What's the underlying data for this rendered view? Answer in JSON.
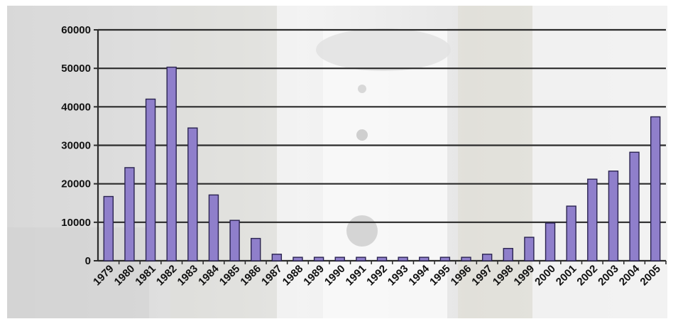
{
  "chart_data": {
    "type": "bar",
    "title": "",
    "xlabel": "",
    "ylabel": "",
    "ylim": [
      0,
      60000
    ],
    "yticks": [
      0,
      10000,
      20000,
      30000,
      40000,
      50000,
      60000
    ],
    "ytick_labels": [
      "0",
      "10000",
      "20000",
      "30000",
      "40000",
      "50000",
      "60000"
    ],
    "grid": true,
    "legend": "none",
    "categories": [
      "1979",
      "1980",
      "1981",
      "1982",
      "1983",
      "1984",
      "1985",
      "1986",
      "1987",
      "1988",
      "1989",
      "1990",
      "1991",
      "1992",
      "1993",
      "1994",
      "1995",
      "1996",
      "1997",
      "1998",
      "1999",
      "2000",
      "2001",
      "2002",
      "2003",
      "2004",
      "2005"
    ],
    "values": [
      16700,
      24200,
      42000,
      50300,
      34500,
      17100,
      10500,
      5800,
      1700,
      900,
      900,
      900,
      900,
      900,
      900,
      900,
      900,
      900,
      1700,
      3200,
      6100,
      9800,
      14200,
      21200,
      23300,
      28200,
      37400
    ],
    "colors": {
      "bar_fill": "#8f7fcb",
      "bar_stroke": "#2a2350",
      "gridline": "#2b2b2b",
      "axis": "#2b2b2b",
      "background_photo": "#e4e4e4"
    }
  }
}
